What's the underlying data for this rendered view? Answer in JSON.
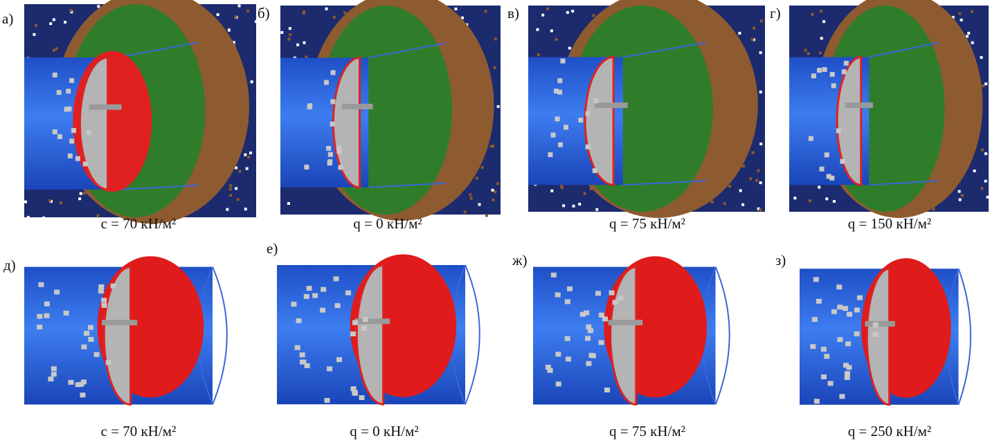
{
  "panels": [
    {
      "label": "а)",
      "caption": "c = 70 кН/м²"
    },
    {
      "label": "б)",
      "caption": "q = 0 кН/м²"
    },
    {
      "label": "в)",
      "caption": "q = 75 кН/м²"
    },
    {
      "label": "г)",
      "caption": "q = 150 кН/м²"
    },
    {
      "label": "д)",
      "caption": "c = 70 кН/м²"
    },
    {
      "label": "е)",
      "caption": "q = 0 кН/м²"
    },
    {
      "label": "ж)",
      "caption": "q = 75 кН/м²"
    },
    {
      "label": "з)",
      "caption": "q = 250 кН/м²"
    }
  ]
}
